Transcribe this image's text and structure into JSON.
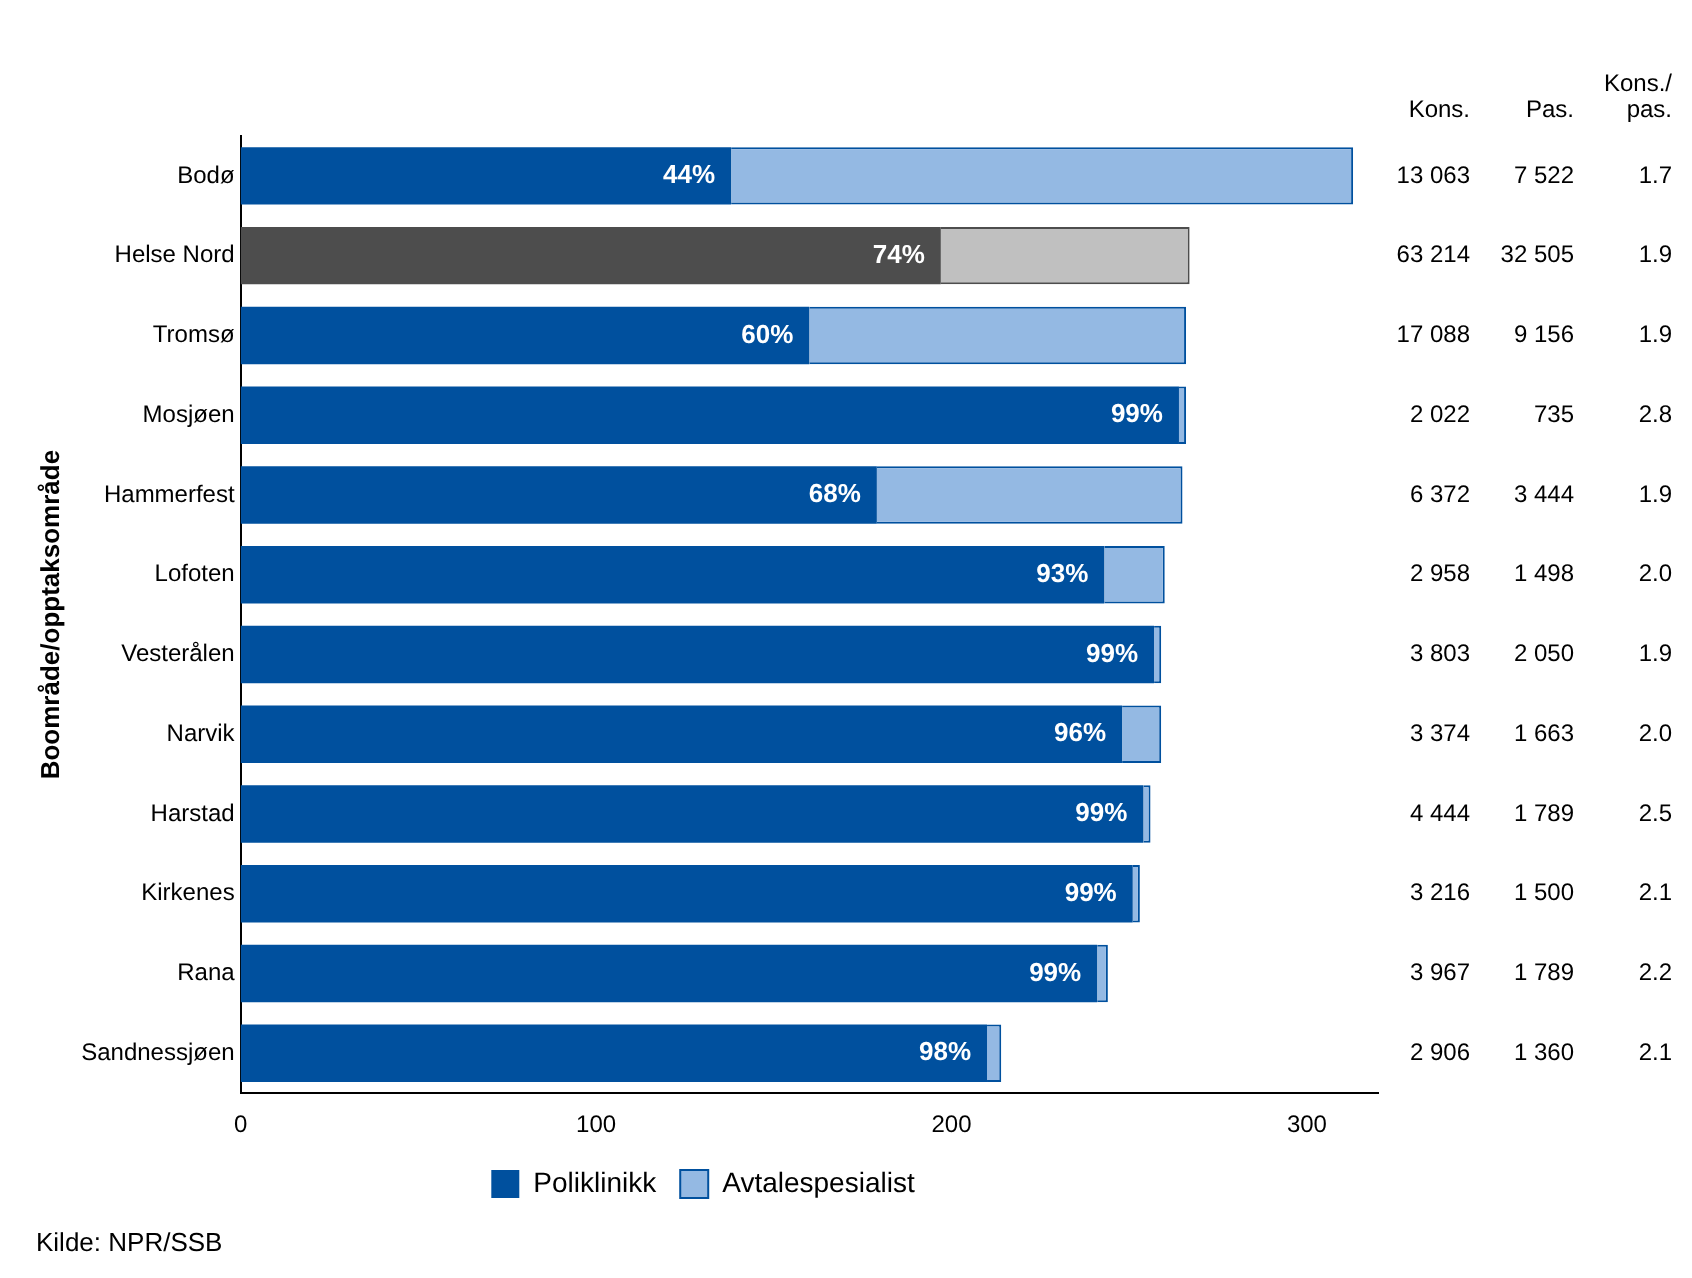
{
  "chart_data": {
    "type": "bar",
    "orientation": "horizontal",
    "stacked": true,
    "ylabel": "Boområde/opptaksområde",
    "categories": [
      "Bodø",
      "Helse Nord",
      "Tromsø",
      "Mosjøen",
      "Hammerfest",
      "Lofoten",
      "Vesterålen",
      "Narvik",
      "Harstad",
      "Kirkenes",
      "Rana",
      "Sandnessjøen"
    ],
    "series": [
      {
        "name": "Poliklinikk",
        "color": "#00509e",
        "colors": [
          "#00509e",
          "#4d4d4d",
          "#00509e",
          "#00509e",
          "#00509e",
          "#00509e",
          "#00509e",
          "#00509e",
          "#00509e",
          "#00509e",
          "#00509e",
          "#00509e"
        ],
        "values": [
          138,
          197,
          160,
          264,
          179,
          243,
          257,
          248,
          254,
          251,
          241,
          210
        ]
      },
      {
        "name": "Avtalespesialist",
        "color": "#94b9e3",
        "colors": [
          "#94b9e3",
          "#c0c0c0",
          "#94b9e3",
          "#94b9e3",
          "#94b9e3",
          "#94b9e3",
          "#94b9e3",
          "#94b9e3",
          "#94b9e3",
          "#94b9e3",
          "#94b9e3",
          "#94b9e3"
        ],
        "values": [
          175,
          70,
          106,
          2,
          86,
          17,
          2,
          11,
          2,
          2,
          3,
          4
        ]
      }
    ],
    "xlim": [
      0,
      320
    ],
    "xticks": [
      0,
      100,
      200,
      300
    ],
    "grid": false,
    "legend": "bottom",
    "annotations": [
      "Kons.",
      "Pas.",
      "Kons./pas.",
      "13 063",
      "7 522",
      "1.7",
      "63 214",
      "32 505",
      "1.9",
      "17 088",
      "9 156",
      "1.9",
      "2 022",
      "735",
      "2.8",
      "6 372",
      "3 444",
      "1.9",
      "2 958",
      "1 498",
      "2.0",
      "3 803",
      "2 050",
      "1.9",
      "3 374",
      "1 663",
      "2.0",
      "4 444",
      "1 789",
      "2.5",
      "3 216",
      "1 500",
      "2.1",
      "3 967",
      "1 789",
      "2.2",
      "2 906",
      "1 360",
      "2.1",
      "Kilde: NPR/SSB",
      {
        "text": "44%",
        "x": 138,
        "y": "Bodø"
      },
      {
        "text": "74%",
        "x": 197,
        "y": "Helse Nord"
      },
      {
        "text": "60%",
        "x": 160,
        "y": "Tromsø"
      },
      {
        "text": "99%",
        "x": 264,
        "y": "Mosjøen"
      },
      {
        "text": "68%",
        "x": 179,
        "y": "Hammerfest"
      },
      {
        "text": "93%",
        "x": 243,
        "y": "Lofoten"
      },
      {
        "text": "99%",
        "x": 257,
        "y": "Vesterålen"
      },
      {
        "text": "96%",
        "x": 248,
        "y": "Narvik"
      },
      {
        "text": "99%",
        "x": 254,
        "y": "Harstad"
      },
      {
        "text": "99%",
        "x": 251,
        "y": "Kirkenes"
      },
      {
        "text": "99%",
        "x": 241,
        "y": "Rana"
      },
      {
        "text": "98%",
        "x": 210,
        "y": "Sandnessjøen"
      }
    ]
  }
}
